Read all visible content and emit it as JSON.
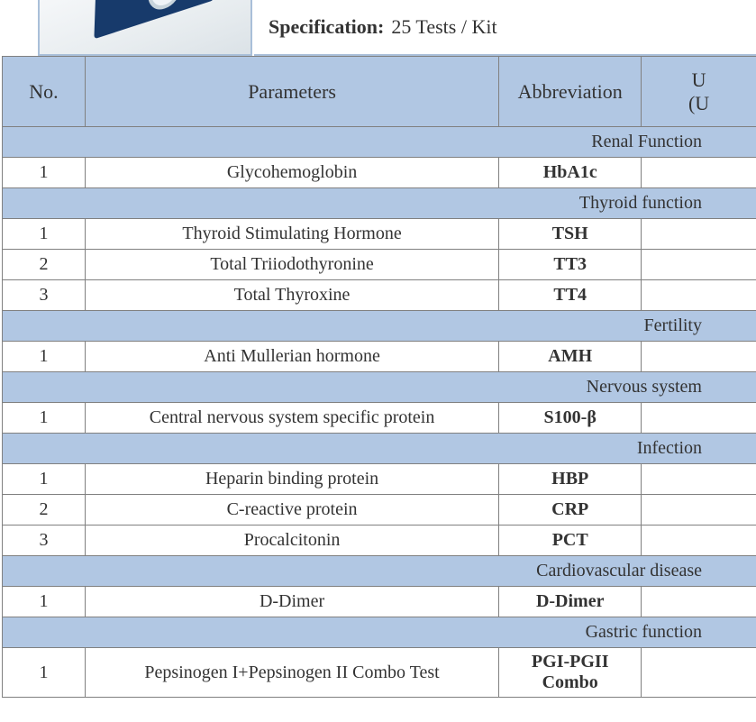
{
  "colors": {
    "header_bg": "#b1c7e3",
    "border": "#808080",
    "accent_border": "#a9bfd9",
    "text": "#333333",
    "device_body": "#173a6b"
  },
  "spec": {
    "label": "Specification:",
    "value": "25 Tests / Kit"
  },
  "headers": {
    "no": "No.",
    "param": "Parameters",
    "abbr": "Abbreviation",
    "unit_line1": "U",
    "unit_line2": "(U"
  },
  "sections": [
    {
      "title": "Renal Function",
      "rows": [
        {
          "no": "1",
          "param": "Glycohemoglobin",
          "abbr": "HbA1c"
        }
      ]
    },
    {
      "title": "Thyroid function",
      "rows": [
        {
          "no": "1",
          "param": "Thyroid Stimulating Hormone",
          "abbr": "TSH"
        },
        {
          "no": "2",
          "param": "Total Triiodothyronine",
          "abbr": "TT3"
        },
        {
          "no": "3",
          "param": "Total Thyroxine",
          "abbr": "TT4"
        }
      ]
    },
    {
      "title": "Fertility",
      "rows": [
        {
          "no": "1",
          "param": "Anti Mullerian hormone",
          "abbr": "AMH"
        }
      ]
    },
    {
      "title": "Nervous system",
      "rows": [
        {
          "no": "1",
          "param": "Central nervous system specific protein",
          "abbr": "S100-β"
        }
      ]
    },
    {
      "title": "Infection",
      "rows": [
        {
          "no": "1",
          "param": "Heparin binding protein",
          "abbr": "HBP"
        },
        {
          "no": "2",
          "param": "C-reactive protein",
          "abbr": "CRP"
        },
        {
          "no": "3",
          "param": "Procalcitonin",
          "abbr": "PCT"
        }
      ]
    },
    {
      "title": "Cardiovascular disease",
      "rows": [
        {
          "no": "1",
          "param": "D-Dimer",
          "abbr": "D-Dimer"
        }
      ]
    },
    {
      "title": "Gastric function",
      "rows": [
        {
          "no": "1",
          "param": "Pepsinogen I+Pepsinogen II Combo Test",
          "abbr": "PGI-PGII Combo",
          "combo": true
        }
      ]
    }
  ]
}
